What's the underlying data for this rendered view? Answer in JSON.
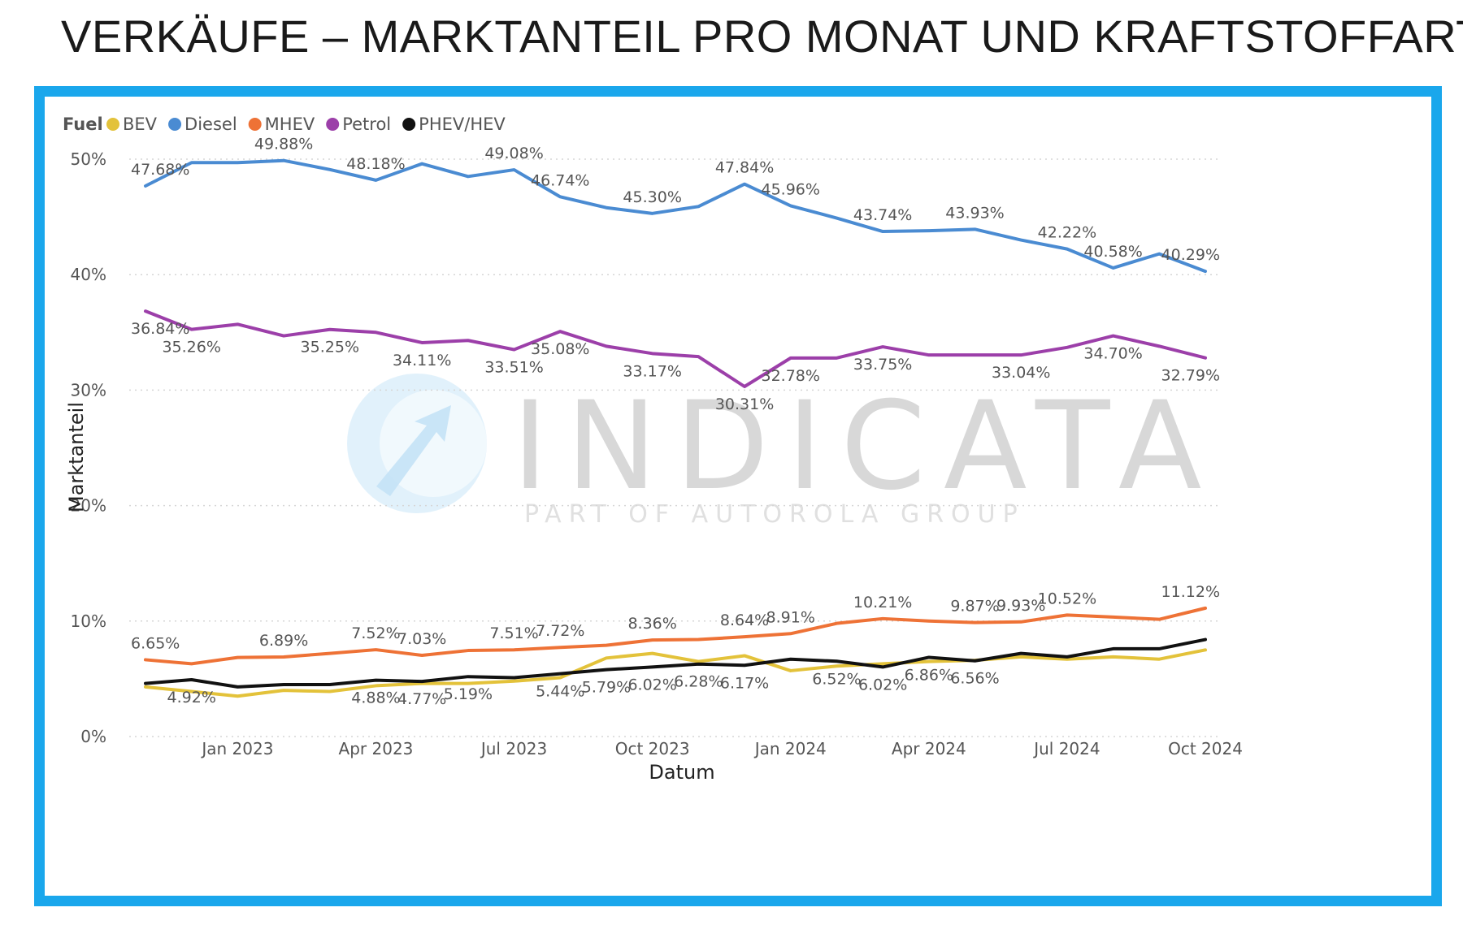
{
  "title": "VERKÄUFE – MARKTANTEIL PRO MONAT UND KRAFTSTOFFART",
  "frame_color": "#1aa7ec",
  "watermark": {
    "brand": "INDICATA",
    "tagline": "PART OF AUTOROLA GROUP",
    "logo_icon": "indicata-logo-icon"
  },
  "chart_data": {
    "type": "line",
    "legend_title": "Fuel",
    "legend_position": "top-left",
    "xlabel": "Datum",
    "ylabel": "Marktanteil",
    "ylim": [
      0,
      50
    ],
    "yticks": [
      "0%",
      "10%",
      "20%",
      "30%",
      "40%",
      "50%"
    ],
    "grid": true,
    "x": [
      "2022-11",
      "2022-12",
      "2023-01",
      "2023-02",
      "2023-03",
      "2023-04",
      "2023-05",
      "2023-06",
      "2023-07",
      "2023-08",
      "2023-09",
      "2023-10",
      "2023-11",
      "2023-12",
      "2024-01",
      "2024-02",
      "2024-03",
      "2024-04",
      "2024-05",
      "2024-06",
      "2024-07",
      "2024-08",
      "2024-09",
      "2024-10"
    ],
    "xticks": [
      {
        "x": "2023-01",
        "label": "Jan 2023"
      },
      {
        "x": "2023-04",
        "label": "Apr 2023"
      },
      {
        "x": "2023-07",
        "label": "Jul 2023"
      },
      {
        "x": "2023-10",
        "label": "Oct 2023"
      },
      {
        "x": "2024-01",
        "label": "Jan 2024"
      },
      {
        "x": "2024-04",
        "label": "Apr 2024"
      },
      {
        "x": "2024-07",
        "label": "Jul 2024"
      },
      {
        "x": "2024-10",
        "label": "Oct 2024"
      }
    ],
    "series": [
      {
        "name": "BEV",
        "color": "#e3c23a",
        "label_pos": "below",
        "values": [
          4.3,
          3.9,
          3.5,
          4.0,
          3.9,
          4.4,
          4.6,
          4.6,
          4.8,
          5.1,
          6.8,
          7.2,
          6.5,
          7.0,
          5.7,
          6.1,
          6.3,
          6.5,
          6.6,
          6.9,
          6.7,
          6.9,
          6.7,
          7.5
        ],
        "labels": []
      },
      {
        "name": "Diesel",
        "color": "#4a8bd2",
        "label_pos": "above",
        "values": [
          47.68,
          49.7,
          49.7,
          49.88,
          49.1,
          48.18,
          49.6,
          48.5,
          49.08,
          46.74,
          45.8,
          45.3,
          45.9,
          47.84,
          45.96,
          44.9,
          43.74,
          43.8,
          43.93,
          43.0,
          42.22,
          40.58,
          41.8,
          40.29
        ],
        "labels": [
          "47.68%",
          "",
          "",
          "49.88%",
          "",
          "48.18%",
          "",
          "",
          "49.08%",
          "46.74%",
          "",
          "45.30%",
          "",
          "47.84%",
          "45.96%",
          "",
          "43.74%",
          "",
          "43.93%",
          "",
          "42.22%",
          "40.58%",
          "",
          "40.29%"
        ]
      },
      {
        "name": "MHEV",
        "color": "#ee7236",
        "label_pos": "above",
        "values": [
          6.65,
          6.3,
          6.85,
          6.89,
          7.2,
          7.52,
          7.03,
          7.45,
          7.51,
          7.72,
          7.9,
          8.36,
          8.4,
          8.64,
          8.91,
          9.8,
          10.21,
          10.0,
          9.87,
          9.93,
          10.52,
          10.35,
          10.15,
          11.12
        ],
        "labels": [
          "6.65%",
          "",
          "",
          "6.89%",
          "",
          "7.52%",
          "7.03%",
          "",
          "7.51%",
          "7.72%",
          "",
          "8.36%",
          "",
          "8.64%",
          "8.91%",
          "",
          "10.21%",
          "",
          "9.87%",
          "9.93%",
          "10.52%",
          "",
          "",
          "11.12%"
        ]
      },
      {
        "name": "Petrol",
        "color": "#9c3fa9",
        "label_pos": "below",
        "values": [
          36.84,
          35.26,
          35.7,
          34.7,
          35.25,
          35.0,
          34.11,
          34.3,
          33.51,
          35.08,
          33.8,
          33.17,
          32.9,
          30.31,
          32.78,
          32.78,
          33.75,
          33.04,
          33.04,
          33.04,
          33.7,
          34.7,
          33.8,
          32.79
        ],
        "labels": [
          "36.84%",
          "35.26%",
          "",
          "",
          "35.25%",
          "",
          "34.11%",
          "",
          "33.51%",
          "35.08%",
          "",
          "33.17%",
          "",
          "30.31%",
          "32.78%",
          "",
          "33.75%",
          "",
          "",
          "33.04%",
          "",
          "34.70%",
          "",
          "32.79%"
        ]
      },
      {
        "name": "PHEV/HEV",
        "color": "#111111",
        "label_pos": "below",
        "values": [
          4.6,
          4.92,
          4.3,
          4.5,
          4.5,
          4.88,
          4.77,
          5.19,
          5.1,
          5.44,
          5.79,
          6.02,
          6.28,
          6.17,
          6.7,
          6.52,
          6.02,
          6.86,
          6.56,
          7.2,
          6.9,
          7.6,
          7.6,
          8.4
        ],
        "labels": [
          "",
          "4.92%",
          "",
          "",
          "",
          "4.88%",
          "4.77%",
          "5.19%",
          "",
          "5.44%",
          "5.79%",
          "6.02%",
          "6.28%",
          "6.17%",
          "",
          "6.52%",
          "6.02%",
          "6.86%",
          "6.56%",
          "",
          "",
          "",
          "",
          ""
        ]
      }
    ]
  }
}
